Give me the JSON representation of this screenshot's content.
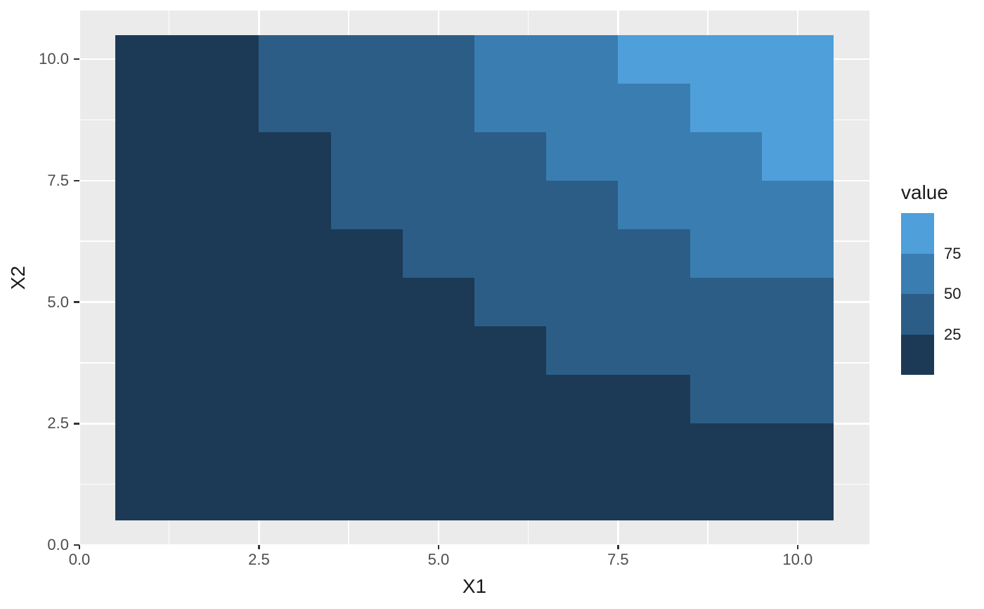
{
  "figure": {
    "background": "#FFFFFF",
    "x_axis": {
      "title": "X1",
      "tick_labels": [
        "0.0",
        "2.5",
        "5.0",
        "7.5",
        "10.0"
      ],
      "tick_values": [
        0,
        2.5,
        5,
        7.5,
        10
      ]
    },
    "y_axis": {
      "title": "X2",
      "tick_labels": [
        "0.0",
        "2.5",
        "5.0",
        "7.5",
        "10.0"
      ],
      "tick_values": [
        0,
        2.5,
        5,
        7.5,
        10
      ]
    },
    "legend": {
      "title": "value",
      "labels": [
        "75",
        "50",
        "25"
      ]
    }
  },
  "chart_data": {
    "type": "heatmap",
    "title": "",
    "xlabel": "X1",
    "ylabel": "X2",
    "x": [
      1,
      2,
      3,
      4,
      5,
      6,
      7,
      8,
      9,
      10
    ],
    "y": [
      1,
      2,
      3,
      4,
      5,
      6,
      7,
      8,
      9,
      10
    ],
    "values": [
      [
        1,
        2,
        3,
        4,
        5,
        6,
        7,
        8,
        9,
        10
      ],
      [
        2,
        4,
        6,
        8,
        10,
        12,
        14,
        16,
        18,
        20
      ],
      [
        3,
        6,
        9,
        12,
        15,
        18,
        21,
        24,
        27,
        30
      ],
      [
        4,
        8,
        12,
        16,
        20,
        24,
        28,
        32,
        36,
        40
      ],
      [
        5,
        10,
        15,
        20,
        25,
        30,
        35,
        40,
        45,
        50
      ],
      [
        6,
        12,
        18,
        24,
        30,
        36,
        42,
        48,
        54,
        60
      ],
      [
        7,
        14,
        21,
        28,
        35,
        42,
        49,
        56,
        63,
        70
      ],
      [
        8,
        16,
        24,
        32,
        40,
        48,
        56,
        64,
        72,
        80
      ],
      [
        9,
        18,
        27,
        36,
        45,
        54,
        63,
        72,
        81,
        90
      ],
      [
        10,
        20,
        30,
        40,
        50,
        60,
        70,
        80,
        90,
        100
      ]
    ],
    "breaks": [
      25,
      50,
      75
    ],
    "bins": [
      {
        "max": 25,
        "label": "<=25",
        "color": "#1C3A55"
      },
      {
        "max": 50,
        "label": "25-50",
        "color": "#2C5D86"
      },
      {
        "max": 75,
        "label": "50-75",
        "color": "#3A7DB1"
      },
      {
        "max": null,
        "label": ">75",
        "color": "#4E9FDA"
      }
    ],
    "xlim": [
      0,
      11
    ],
    "ylim": [
      0,
      11
    ],
    "grid": true,
    "panel_background": "#EBEBEB",
    "grid_color": "#FFFFFF",
    "axis_text_color": "#4D4D4D",
    "legend_position": "right",
    "legend_title": "value"
  }
}
